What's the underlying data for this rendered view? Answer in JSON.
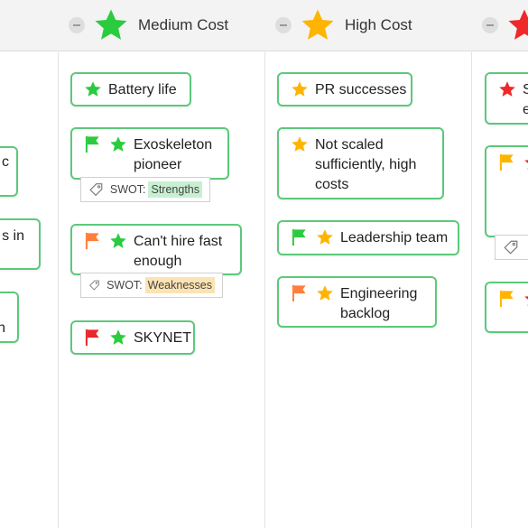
{
  "columns": [
    {
      "label": "Medium Cost",
      "star_color": "#2bcb3f"
    },
    {
      "label": "High Cost",
      "star_color": "#ffb400"
    },
    {
      "label": "",
      "star_color": "#ef2929"
    }
  ],
  "left_partial": {
    "cards": [
      {
        "text": "c"
      },
      {
        "text": "s in"
      },
      {
        "text": "n"
      }
    ]
  },
  "medium": {
    "cards": [
      {
        "text": "Battery life",
        "star_color": "#2bcb3f"
      },
      {
        "text": "Exoskeleton pioneer",
        "line1": "Exoskeleton",
        "line2": "pioneer",
        "flag_color": "#2bcb3f",
        "star_color": "#2bcb3f",
        "tag": {
          "prefix": "SWOT:",
          "value": "Strengths"
        }
      },
      {
        "line1": "Can't hire fast",
        "line2": "enough",
        "flag_color": "#ff7e3b",
        "star_color": "#2bcb3f",
        "tag": {
          "prefix": "SWOT:",
          "value": "Weaknesses"
        }
      },
      {
        "text": "SKYNET",
        "flag_color": "#e8262b",
        "star_color": "#2bcb3f"
      }
    ]
  },
  "high": {
    "cards": [
      {
        "text": "PR successes",
        "star_color": "#ffb400"
      },
      {
        "line1": "Not scaled",
        "line2": "sufficiently, high",
        "line3": "costs",
        "star_color": "#ffb400"
      },
      {
        "text": "Leadership team",
        "flag_color": "#2bcb3f",
        "star_color": "#ffb400"
      },
      {
        "line1": "Engineering",
        "line2": "backlog",
        "flag_color": "#ff7e3b",
        "star_color": "#ffb400"
      }
    ]
  },
  "right_partial": {
    "cards": [
      {
        "line1": "S",
        "line2": "e",
        "star_color": "#ef2929"
      },
      {
        "flag_color": "#ffb400",
        "star_color": "#ef2929"
      },
      {
        "flag_color": "#ffb400",
        "star_color": "#ef2929"
      }
    ]
  },
  "icons": {
    "star": "star-icon",
    "flag": "flag-icon",
    "tag": "tag-icon",
    "collapse": "collapse-icon"
  }
}
